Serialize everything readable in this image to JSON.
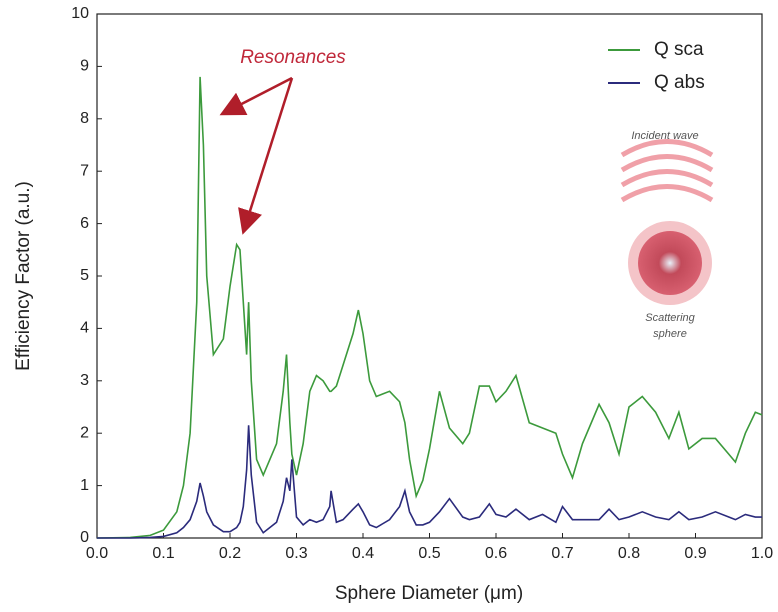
{
  "chart_data": {
    "type": "line",
    "xlabel": "Sphere Diameter (μm)",
    "ylabel": "Efficiency Factor (a.u.)",
    "annotations": [
      "Resonances",
      "Incident wave",
      "Scattering",
      "sphere"
    ],
    "x": [
      0.0,
      0.05,
      0.08,
      0.1,
      0.12,
      0.13,
      0.14,
      0.15,
      0.155,
      0.16,
      0.165,
      0.175,
      0.19,
      0.2,
      0.21,
      0.215,
      0.22,
      0.225,
      0.228,
      0.232,
      0.24,
      0.25,
      0.27,
      0.28,
      0.285,
      0.29,
      0.293,
      0.3,
      0.31,
      0.32,
      0.33,
      0.34,
      0.35,
      0.352,
      0.36,
      0.37,
      0.385,
      0.393,
      0.4,
      0.41,
      0.42,
      0.44,
      0.455,
      0.463,
      0.47,
      0.48,
      0.49,
      0.5,
      0.515,
      0.53,
      0.55,
      0.56,
      0.575,
      0.59,
      0.6,
      0.615,
      0.63,
      0.65,
      0.67,
      0.69,
      0.7,
      0.715,
      0.73,
      0.755,
      0.77,
      0.785,
      0.8,
      0.82,
      0.84,
      0.86,
      0.875,
      0.89,
      0.91,
      0.93,
      0.95,
      0.96,
      0.975,
      0.99,
      1.0
    ],
    "series": [
      {
        "name": "Q sca",
        "color": "#3c9a3c",
        "values": [
          0,
          0.01,
          0.05,
          0.15,
          0.5,
          1.0,
          2.0,
          4.5,
          8.8,
          7.5,
          5.0,
          3.5,
          3.8,
          4.8,
          5.6,
          5.5,
          4.5,
          3.5,
          4.5,
          3.0,
          1.5,
          1.2,
          1.8,
          2.8,
          3.5,
          2.2,
          1.6,
          1.2,
          1.8,
          2.8,
          3.1,
          3.0,
          2.8,
          2.8,
          2.9,
          3.3,
          3.9,
          4.35,
          3.9,
          3.0,
          2.7,
          2.8,
          2.6,
          2.2,
          1.5,
          0.8,
          1.1,
          1.7,
          2.8,
          2.1,
          1.8,
          2.0,
          2.9,
          2.9,
          2.6,
          2.8,
          3.1,
          2.2,
          2.1,
          2.0,
          1.6,
          1.15,
          1.8,
          2.55,
          2.2,
          1.6,
          2.5,
          2.7,
          2.4,
          1.9,
          2.4,
          1.7,
          1.9,
          1.9,
          1.6,
          1.45,
          2.0,
          2.4,
          2.35
        ]
      },
      {
        "name": "Q abs",
        "color": "#2b2b7c",
        "values": [
          0,
          0,
          0.01,
          0.03,
          0.1,
          0.2,
          0.35,
          0.7,
          1.05,
          0.8,
          0.5,
          0.25,
          0.12,
          0.12,
          0.2,
          0.3,
          0.6,
          1.3,
          2.15,
          1.2,
          0.3,
          0.1,
          0.3,
          0.7,
          1.15,
          0.9,
          1.5,
          0.4,
          0.25,
          0.35,
          0.3,
          0.35,
          0.6,
          0.9,
          0.3,
          0.35,
          0.55,
          0.65,
          0.5,
          0.25,
          0.2,
          0.35,
          0.6,
          0.9,
          0.5,
          0.25,
          0.25,
          0.3,
          0.5,
          0.75,
          0.4,
          0.35,
          0.4,
          0.65,
          0.45,
          0.4,
          0.55,
          0.35,
          0.45,
          0.3,
          0.6,
          0.35,
          0.35,
          0.35,
          0.55,
          0.35,
          0.4,
          0.5,
          0.4,
          0.35,
          0.5,
          0.35,
          0.4,
          0.5,
          0.4,
          0.35,
          0.45,
          0.4,
          0.4
        ]
      }
    ],
    "xlim": [
      0,
      1
    ],
    "xticks": [
      {
        "value": 0,
        "label": "0.0"
      },
      0.1,
      0.2,
      0.3,
      0.4,
      0.5,
      0.6,
      0.7,
      0.8,
      0.9,
      {
        "value": 1,
        "label": "1.0"
      }
    ],
    "ylim": [
      0,
      10
    ],
    "yticks": [
      0,
      1,
      2,
      3,
      4,
      5,
      6,
      7,
      8,
      9,
      10
    ],
    "grid": false,
    "legend": "upper right"
  }
}
